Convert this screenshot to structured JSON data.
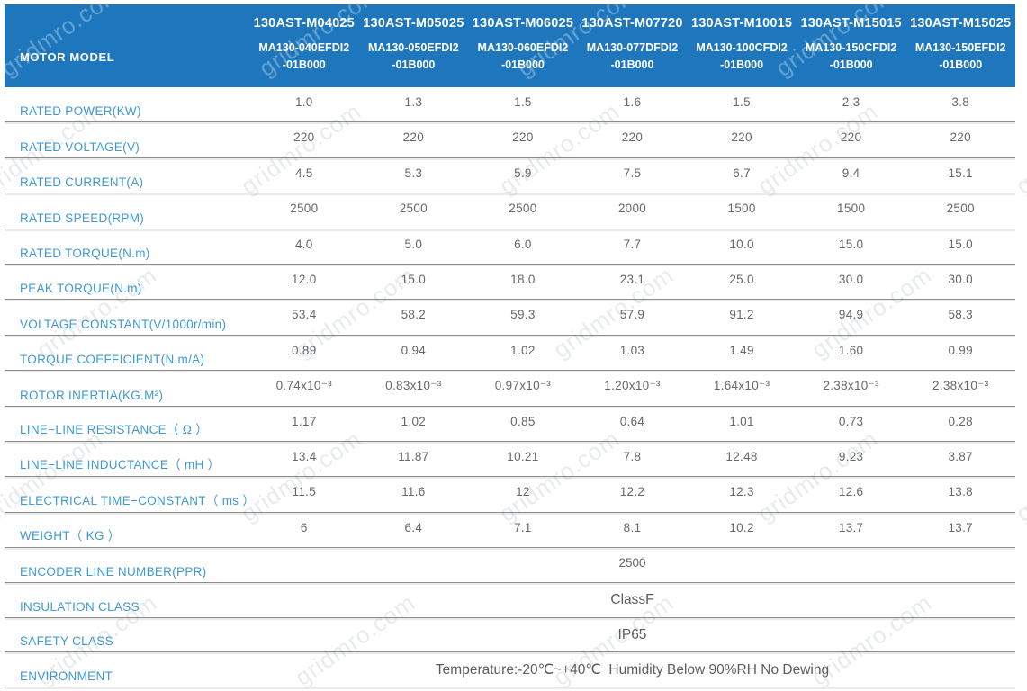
{
  "watermark": {
    "text": "gridmro.com"
  },
  "colors": {
    "header_bg": "#1e77bd",
    "label_blue": "#3f9ad1",
    "value_gray": "#676767",
    "divider_gray": "#8d8d8d"
  },
  "table": {
    "corner_label": "MOTOR MODEL",
    "columns": [
      {
        "model": "130AST-M04025",
        "part": "MA130-040EFDI2\n-01B000"
      },
      {
        "model": "130AST-M05025",
        "part": "MA130-050EFDI2\n-01B000"
      },
      {
        "model": "130AST-M06025",
        "part": "MA130-060EFDI2\n-01B000"
      },
      {
        "model": "130AST-M07720",
        "part": "MA130-077DFDI2\n-01B000"
      },
      {
        "model": "130AST-M10015",
        "part": "MA130-100CFDI2\n-01B000"
      },
      {
        "model": "130AST-M15015",
        "part": "MA130-150CFDI2\n-01B000"
      },
      {
        "model": "130AST-M15025",
        "part": "MA130-150EFDI2\n-01B000"
      }
    ],
    "rows": [
      {
        "label": "RATED POWER(KW)",
        "values": [
          "1.0",
          "1.3",
          "1.5",
          "1.6",
          "1.5",
          "2.3",
          "3.8"
        ]
      },
      {
        "label": "RATED VOLTAGE(V)",
        "values": [
          "220",
          "220",
          "220",
          "220",
          "220",
          "220",
          "220"
        ]
      },
      {
        "label": "RATED CURRENT(A)",
        "values": [
          "4.5",
          "5.3",
          "5.9",
          "7.5",
          "6.7",
          "9.4",
          "15.1"
        ]
      },
      {
        "label": "RATED SPEED(RPM)",
        "values": [
          "2500",
          "2500",
          "2500",
          "2000",
          "1500",
          "1500",
          "2500"
        ]
      },
      {
        "label": "RATED TORQUE(N.m)",
        "values": [
          "4.0",
          "5.0",
          "6.0",
          "7.7",
          "10.0",
          "15.0",
          "15.0"
        ]
      },
      {
        "label": "PEAK TORQUE(N.m)",
        "values": [
          "12.0",
          "15.0",
          "18.0",
          "23.1",
          "25.0",
          "30.0",
          "30.0"
        ]
      },
      {
        "label": "VOLTAGE CONSTANT(V/1000r/min)",
        "values": [
          "53.4",
          "58.2",
          "59.3",
          "57.9",
          "91.2",
          "94.9",
          "58.3"
        ]
      },
      {
        "label": "TORQUE COEFFICIENT(N.m/A)",
        "values": [
          "0.89",
          "0.94",
          "1.02",
          "1.03",
          "1.49",
          "1.60",
          "0.99"
        ]
      },
      {
        "label": "ROTOR INERTIA(KG.M²)",
        "values": [
          "0.74x10⁻³",
          "0.83x10⁻³",
          "0.97x10⁻³",
          "1.20x10⁻³",
          "1.64x10⁻³",
          "2.38x10⁻³",
          "2.38x10⁻³"
        ]
      },
      {
        "label": "LINE−LINE RESISTANCE（ Ω ）",
        "values": [
          "1.17",
          "1.02",
          "0.85",
          "0.64",
          "1.01",
          "0.73",
          "0.28"
        ]
      },
      {
        "label": "LINE−LINE INDUCTANCE（ mH ）",
        "values": [
          "13.4",
          "11.87",
          "10.21",
          "7.8",
          "12.48",
          "9.23",
          "3.87"
        ]
      },
      {
        "label": "ELECTRICAL TIME−CONSTANT（ ms ）",
        "values": [
          "11.5",
          "11.6",
          "12",
          "12.2",
          "12.3",
          "12.6",
          "13.8"
        ]
      },
      {
        "label": "WEIGHT（ KG ）",
        "values": [
          "6",
          "6.4",
          "7.1",
          "8.1",
          "10.2",
          "13.7",
          "13.7"
        ]
      }
    ],
    "merged_rows": [
      {
        "label": "ENCODER LINE NUMBER(PPR)",
        "value": "2500",
        "large": false
      },
      {
        "label": "INSULATION CLASS",
        "value": "ClassF",
        "large": true
      },
      {
        "label": "SAFETY CLASS",
        "value": "IP65",
        "large": true
      },
      {
        "label": "ENVIRONMENT",
        "value": "Temperature:-20℃~+40℃  Humidity Below 90%RH No Dewing",
        "large": true
      }
    ]
  }
}
